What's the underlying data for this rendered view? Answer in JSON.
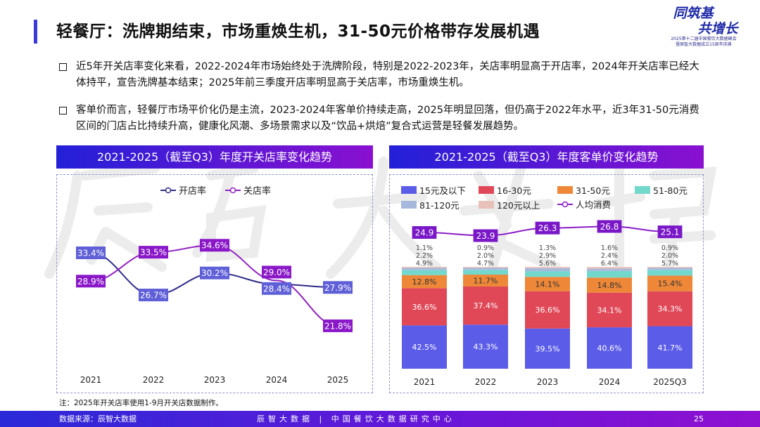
{
  "header": {
    "title": "轻餐厅：洗牌期结束，市场重焕生机，31-50元价格带存发展机遇",
    "logo": {
      "line1": "同筑基",
      "line2": "共增长",
      "sub1": "2025第十二届中国餐饮大数据峰会",
      "sub2": "暨辰智大数据成立15周年庆典"
    }
  },
  "bullets": [
    "近5年开关店率变化来看，2022-2024年市场始终处于洗牌阶段，特别是2022-2023年，关店率明显高于开店率，2024年开关店率已经大体持平，宣告洗牌基本结束；2025年前三季度开店率明显高于关店率，市场重焕生机。",
    "客单价而言，轻餐厅市场平价化仍是主流，2023-2024年客单价持续走高，2025年明显回落，但仍高于2022年水平，近3年31-50元消费区间的门店占比持续升高，健康化风潮、多场景需求以及“饮品+烘焙”复合式运营是轻餐发展趋势。"
  ],
  "watermark": "辰智大数据",
  "chart_data": [
    {
      "type": "line",
      "title": "2021-2025（截至Q3）年度开关店率变化趋势",
      "categories": [
        "2021",
        "2022",
        "2023",
        "2024",
        "2025"
      ],
      "series": [
        {
          "name": "开店率",
          "values": [
            33.4,
            26.7,
            30.2,
            28.4,
            27.9
          ],
          "labels": [
            "33.4%",
            "26.7%",
            "30.2%",
            "28.4%",
            "27.9%"
          ],
          "color": "#2e2a8a",
          "label_bg": "#5f5fd8"
        },
        {
          "name": "关店率",
          "values": [
            28.9,
            33.5,
            34.6,
            29.0,
            21.8
          ],
          "labels": [
            "28.9%",
            "33.5%",
            "34.6%",
            "29.0%",
            "21.8%"
          ],
          "color": "#9020c0",
          "label_bg": "#8a18c8"
        }
      ],
      "legend": "top-center",
      "grid": false
    },
    {
      "type": "bar",
      "stacked": true,
      "title": "2021-2025（截至Q3）年度客单价变化趋势",
      "categories": [
        "2021",
        "2022",
        "2023",
        "2024",
        "2025Q3"
      ],
      "series": [
        {
          "name": "15元及以下",
          "values": [
            42.5,
            43.3,
            39.5,
            40.6,
            41.7
          ],
          "labels": [
            "42.5%",
            "43.3%",
            "39.5%",
            "40.6%",
            "41.7%"
          ],
          "color": "#5b5ce8"
        },
        {
          "name": "16-30元",
          "values": [
            36.6,
            37.4,
            36.6,
            34.1,
            34.3
          ],
          "labels": [
            "36.6%",
            "37.4%",
            "36.6%",
            "34.1%",
            "34.3%"
          ],
          "color": "#e04858"
        },
        {
          "name": "31-50元",
          "values": [
            12.8,
            11.7,
            14.1,
            14.8,
            15.4
          ],
          "labels": [
            "12.8%",
            "11.7%",
            "14.1%",
            "14.8%",
            "15.4%"
          ],
          "color": "#ee8838"
        },
        {
          "name": "51-80元",
          "values": [
            4.9,
            4.7,
            5.6,
            6.4,
            5.7
          ],
          "labels": [
            "4.9%",
            "4.7%",
            "5.6%",
            "6.4%",
            "5.7%"
          ],
          "color": "#72d8cc"
        },
        {
          "name": "81-120元",
          "values": [
            2.2,
            2.0,
            2.9,
            2.4,
            2.0
          ],
          "labels": [
            "2.2%",
            "2.0%",
            "2.9%",
            "2.4%",
            "2.0%"
          ],
          "color": "#a8b8dc"
        },
        {
          "name": "120元以上",
          "values": [
            1.1,
            0.9,
            1.3,
            1.6,
            0.9
          ],
          "labels": [
            "1.1%",
            "0.9%",
            "1.3%",
            "1.6%",
            "0.9%"
          ],
          "color": "#e8c2ba"
        }
      ],
      "line_series": {
        "name": "人均消费",
        "values": [
          24.9,
          23.9,
          26.3,
          26.8,
          25.1
        ],
        "labels": [
          "24.9",
          "23.9",
          "26.3",
          "26.8",
          "25.1"
        ],
        "color": "#8a1ec8"
      },
      "legend": "top",
      "grid": false
    }
  ],
  "note": "注：2025年开关店率使用1-9月开关店数据制作。",
  "footer": {
    "source": "数据来源：辰智大数据",
    "center": "辰智大数据 | 中国餐饮大数据研究中心",
    "page": "25"
  }
}
